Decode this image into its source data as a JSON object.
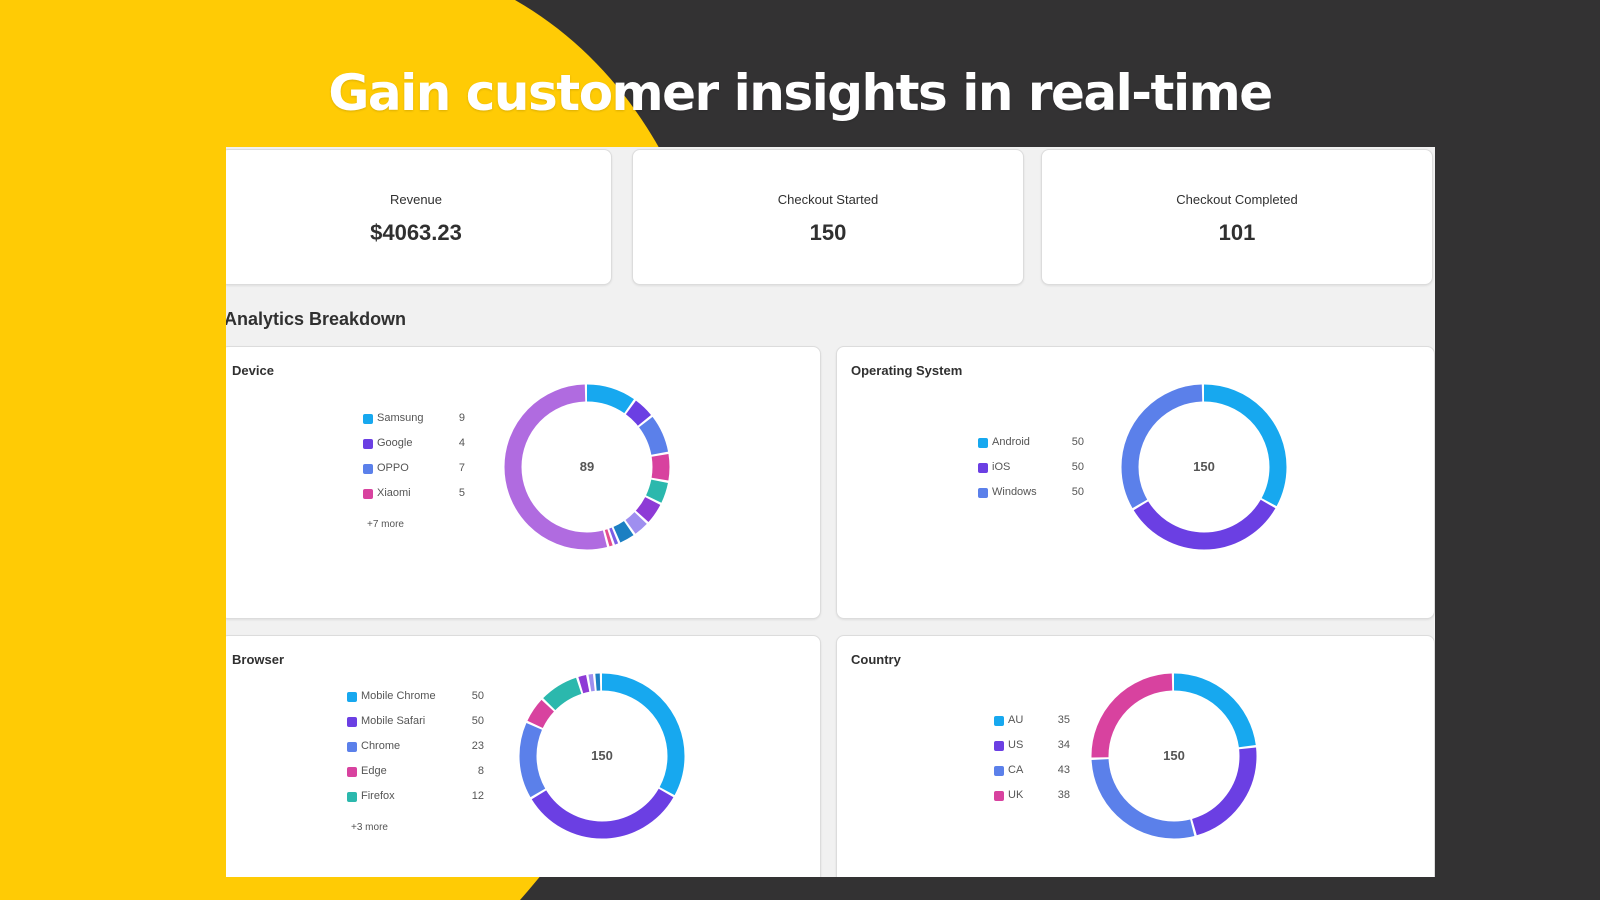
{
  "hero": {
    "headline": "Gain customer insights in real-time"
  },
  "stats": [
    {
      "label": "Revenue",
      "value": "$4063.23"
    },
    {
      "label": "Checkout Started",
      "value": "150"
    },
    {
      "label": "Checkout Completed",
      "value": "101"
    }
  ],
  "section_title": "Analytics Breakdown",
  "colors": {
    "background": "#333233",
    "accent_yellow": "#ffcb05",
    "panel": "#f1f1f1",
    "card": "#ffffff",
    "series": [
      "#17a8ef",
      "#6b3fe3",
      "#5b80ea",
      "#d8429f",
      "#2bb8ad",
      "#8e3ad6",
      "#9f8fef",
      "#1c7fc2",
      "#7b5ee6",
      "#e44d8f",
      "#b06be0"
    ]
  },
  "chart_data": [
    {
      "type": "pie",
      "title": "Device",
      "center": "89",
      "legend": [
        {
          "label": "Samsung",
          "value": 9
        },
        {
          "label": "Google",
          "value": 4
        },
        {
          "label": "OPPO",
          "value": 7
        },
        {
          "label": "Xiaomi",
          "value": 5
        }
      ],
      "more": "+7 more",
      "slices": [
        9,
        4,
        7,
        5,
        4,
        4,
        3,
        3,
        1,
        1,
        48
      ],
      "slice_colors": [
        "#17a8ef",
        "#6b3fe3",
        "#5b80ea",
        "#d8429f",
        "#2bb8ad",
        "#8e3ad6",
        "#9f8fef",
        "#1c7fc2",
        "#7b5ee6",
        "#e44d8f",
        "#b06be0"
      ]
    },
    {
      "type": "pie",
      "title": "Operating System",
      "center": "150",
      "legend": [
        {
          "label": "Android",
          "value": 50
        },
        {
          "label": "iOS",
          "value": 50
        },
        {
          "label": "Windows",
          "value": 50
        }
      ],
      "more": "",
      "slices": [
        50,
        50,
        50
      ],
      "slice_colors": [
        "#17a8ef",
        "#6b3fe3",
        "#5b80ea"
      ]
    },
    {
      "type": "pie",
      "title": "Browser",
      "center": "150",
      "legend": [
        {
          "label": "Mobile Chrome",
          "value": 50
        },
        {
          "label": "Mobile Safari",
          "value": 50
        },
        {
          "label": "Chrome",
          "value": 23
        },
        {
          "label": "Edge",
          "value": 8
        },
        {
          "label": "Firefox",
          "value": 12
        }
      ],
      "more": "+3 more",
      "slices": [
        50,
        50,
        23,
        8,
        12,
        3,
        2,
        2
      ],
      "slice_colors": [
        "#17a8ef",
        "#6b3fe3",
        "#5b80ea",
        "#d8429f",
        "#2bb8ad",
        "#8e3ad6",
        "#9f8fef",
        "#1c7fc2"
      ]
    },
    {
      "type": "pie",
      "title": "Country",
      "center": "150",
      "legend": [
        {
          "label": "AU",
          "value": 35
        },
        {
          "label": "US",
          "value": 34
        },
        {
          "label": "CA",
          "value": 43
        },
        {
          "label": "UK",
          "value": 38
        }
      ],
      "more": "",
      "slices": [
        35,
        34,
        43,
        38
      ],
      "slice_colors": [
        "#17a8ef",
        "#6b3fe3",
        "#5b80ea",
        "#d8429f"
      ]
    }
  ]
}
